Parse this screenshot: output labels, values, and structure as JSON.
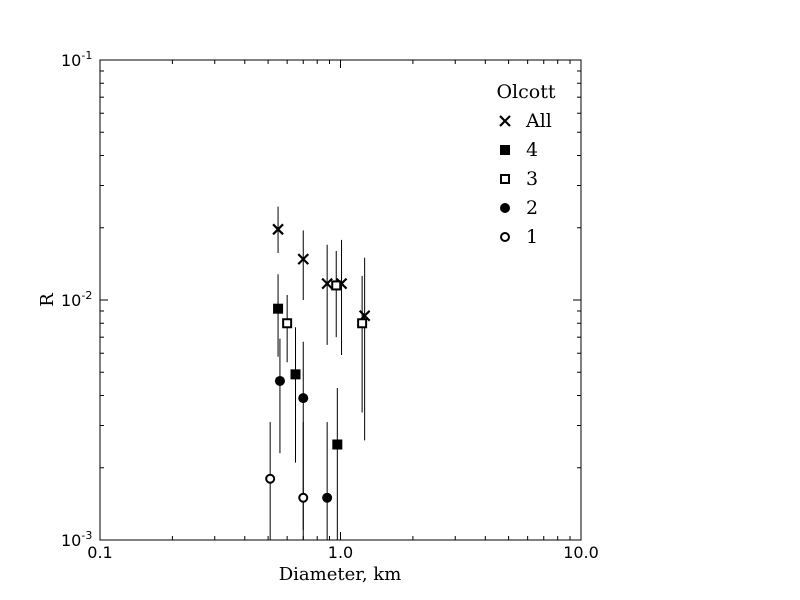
{
  "chart_data": {
    "type": "scatter",
    "xlabel": "Diameter, km",
    "ylabel": "R",
    "xscale": "log",
    "yscale": "log",
    "xlim": [
      0.1,
      10.0
    ],
    "ylim": [
      0.001,
      0.1
    ],
    "x_tick_labels": [
      "0.1",
      "1.0",
      "10.0"
    ],
    "y_tick_labels": [
      {
        "base": "10",
        "exp": "-3"
      },
      {
        "base": "10",
        "exp": "-2"
      },
      {
        "base": "10",
        "exp": "-1"
      }
    ],
    "grid": false,
    "legend": {
      "title": "Olcott",
      "placement": "top-right"
    },
    "series": [
      {
        "name": "All",
        "marker": "x",
        "points": [
          {
            "x": 0.55,
            "y": 0.0197,
            "ylo": 0.0157,
            "yhi": 0.0245
          },
          {
            "x": 0.7,
            "y": 0.0148,
            "ylo": 0.01,
            "yhi": 0.0195
          },
          {
            "x": 0.88,
            "y": 0.0117,
            "ylo": 0.0065,
            "yhi": 0.017
          },
          {
            "x": 1.01,
            "y": 0.0117,
            "ylo": 0.0059,
            "yhi": 0.0178
          },
          {
            "x": 1.26,
            "y": 0.0086,
            "ylo": 0.0026,
            "yhi": 0.015
          }
        ]
      },
      {
        "name": "4",
        "marker": "filled-square",
        "points": [
          {
            "x": 0.55,
            "y": 0.0092,
            "ylo": 0.0058,
            "yhi": 0.0128
          },
          {
            "x": 0.65,
            "y": 0.0049,
            "ylo": 0.0021,
            "yhi": 0.0077
          },
          {
            "x": 0.97,
            "y": 0.0025,
            "ylo": 0.0009,
            "yhi": 0.0043
          }
        ]
      },
      {
        "name": "3",
        "marker": "open-square",
        "points": [
          {
            "x": 0.6,
            "y": 0.008,
            "ylo": 0.0055,
            "yhi": 0.0105
          },
          {
            "x": 0.96,
            "y": 0.0115,
            "ylo": 0.007,
            "yhi": 0.016
          },
          {
            "x": 1.23,
            "y": 0.008,
            "ylo": 0.0034,
            "yhi": 0.0126
          }
        ]
      },
      {
        "name": "2",
        "marker": "filled-circle",
        "points": [
          {
            "x": 0.56,
            "y": 0.0046,
            "ylo": 0.0023,
            "yhi": 0.0069
          },
          {
            "x": 0.7,
            "y": 0.0039,
            "ylo": 0.0011,
            "yhi": 0.0067
          },
          {
            "x": 0.88,
            "y": 0.0015,
            "ylo": 0.0008,
            "yhi": 0.0031
          }
        ]
      },
      {
        "name": "1",
        "marker": "open-circle",
        "points": [
          {
            "x": 0.51,
            "y": 0.0018,
            "ylo": 0.0008,
            "yhi": 0.0031
          },
          {
            "x": 0.7,
            "y": 0.0015,
            "ylo": 0.0008,
            "yhi": 0.0031
          }
        ]
      }
    ]
  }
}
